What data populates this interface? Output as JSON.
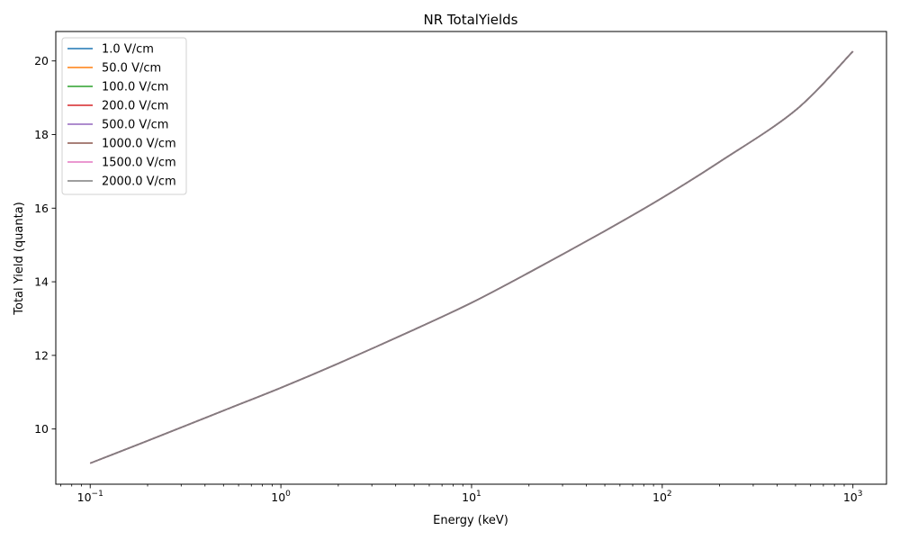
{
  "chart_data": {
    "type": "line",
    "title": "NR TotalYields",
    "xlabel": "Energy (keV)",
    "ylabel": "Total Yield (quanta)",
    "xscale": "log",
    "xlim": [
      0.066,
      1500
    ],
    "ylim": [
      8.5,
      20.8
    ],
    "xticks": [
      {
        "value": 0.1,
        "base": "10",
        "exp": "−1"
      },
      {
        "value": 1,
        "base": "10",
        "exp": "0"
      },
      {
        "value": 10,
        "base": "10",
        "exp": "1"
      },
      {
        "value": 100,
        "base": "10",
        "exp": "2"
      },
      {
        "value": 1000,
        "base": "10",
        "exp": "3"
      }
    ],
    "yticks": [
      10,
      12,
      14,
      16,
      18,
      20
    ],
    "grid": false,
    "legend_position": "top-left",
    "x": [
      0.1,
      0.2,
      0.5,
      1,
      2,
      5,
      10,
      20,
      50,
      100,
      200,
      500,
      1000
    ],
    "series": [
      {
        "name": "1.0 V/cm",
        "color": "#1f77b4",
        "values": [
          9.07,
          9.68,
          10.5,
          11.12,
          11.78,
          12.7,
          13.43,
          14.25,
          15.38,
          16.28,
          17.26,
          18.66,
          20.26
        ]
      },
      {
        "name": "50.0 V/cm",
        "color": "#ff7f0e",
        "values": [
          9.07,
          9.68,
          10.5,
          11.12,
          11.78,
          12.7,
          13.43,
          14.25,
          15.38,
          16.28,
          17.26,
          18.66,
          20.26
        ]
      },
      {
        "name": "100.0 V/cm",
        "color": "#2ca02c",
        "values": [
          9.07,
          9.68,
          10.5,
          11.12,
          11.78,
          12.7,
          13.43,
          14.25,
          15.38,
          16.28,
          17.26,
          18.66,
          20.26
        ]
      },
      {
        "name": "200.0 V/cm",
        "color": "#d62728",
        "values": [
          9.07,
          9.68,
          10.5,
          11.12,
          11.78,
          12.7,
          13.43,
          14.25,
          15.38,
          16.28,
          17.26,
          18.66,
          20.26
        ]
      },
      {
        "name": "500.0 V/cm",
        "color": "#9467bd",
        "values": [
          9.07,
          9.68,
          10.5,
          11.12,
          11.78,
          12.7,
          13.43,
          14.25,
          15.38,
          16.28,
          17.26,
          18.66,
          20.26
        ]
      },
      {
        "name": "1000.0 V/cm",
        "color": "#8c564b",
        "values": [
          9.07,
          9.68,
          10.5,
          11.12,
          11.78,
          12.7,
          13.43,
          14.25,
          15.38,
          16.28,
          17.26,
          18.66,
          20.26
        ]
      },
      {
        "name": "1500.0 V/cm",
        "color": "#e377c2",
        "values": [
          9.07,
          9.68,
          10.5,
          11.12,
          11.78,
          12.7,
          13.43,
          14.25,
          15.38,
          16.28,
          17.26,
          18.66,
          20.26
        ]
      },
      {
        "name": "2000.0 V/cm",
        "color": "#7f7f7f",
        "values": [
          9.07,
          9.68,
          10.5,
          11.12,
          11.78,
          12.7,
          13.43,
          14.25,
          15.38,
          16.28,
          17.26,
          18.66,
          20.26
        ]
      }
    ]
  }
}
